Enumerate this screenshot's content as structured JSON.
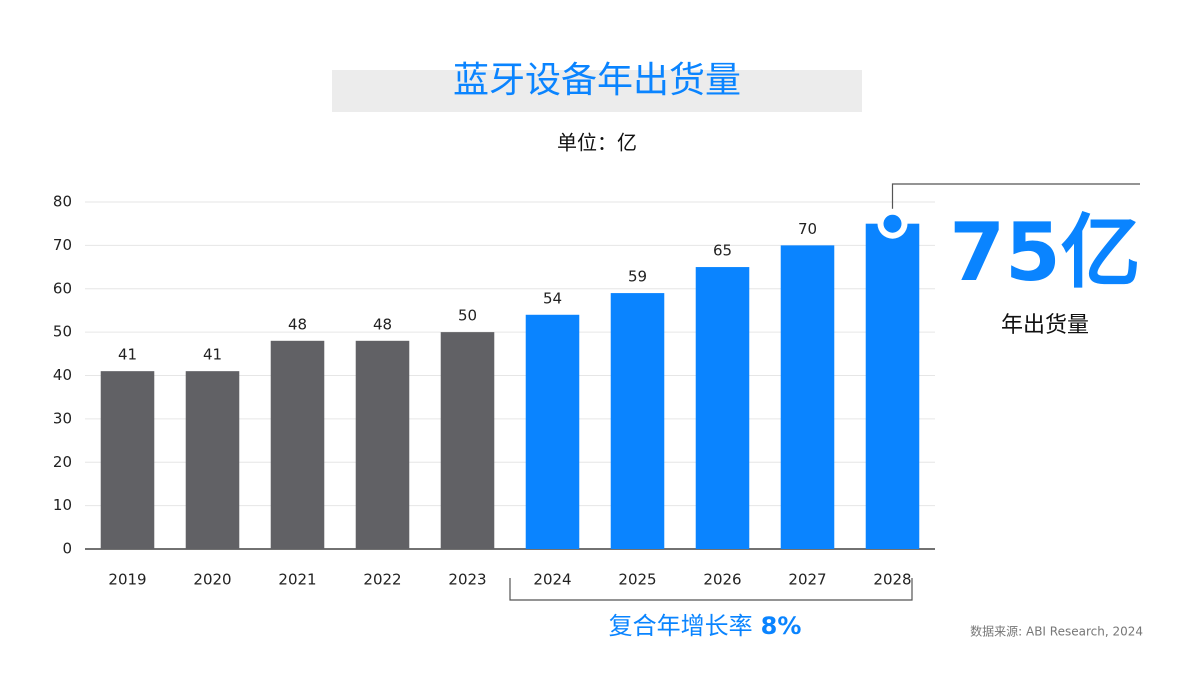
{
  "chart_data": {
    "type": "bar",
    "title": "蓝牙设备年出货量",
    "subtitle": "单位：亿",
    "categories": [
      "2019",
      "2020",
      "2021",
      "2022",
      "2023",
      "2024",
      "2025",
      "2026",
      "2027",
      "2028"
    ],
    "values": [
      41,
      41,
      48,
      48,
      50,
      54,
      59,
      65,
      70,
      75
    ],
    "value_labels": [
      "41",
      "41",
      "48",
      "48",
      "50",
      "54",
      "59",
      "65",
      "70",
      null
    ],
    "colors": [
      "#616165",
      "#616165",
      "#616165",
      "#616165",
      "#616165",
      "#0a84ff",
      "#0a84ff",
      "#0a84ff",
      "#0a84ff",
      "#0a84ff"
    ],
    "ylim": [
      0,
      80
    ],
    "yticks": [
      0,
      10,
      20,
      30,
      40,
      50,
      60,
      70,
      80
    ],
    "grid": true,
    "callout": {
      "text": "75亿",
      "caption": "年出货量"
    },
    "cagr": {
      "label": "复合年增长率",
      "value_text": "8%"
    },
    "source": "数据来源: ABI Research, 2024"
  }
}
